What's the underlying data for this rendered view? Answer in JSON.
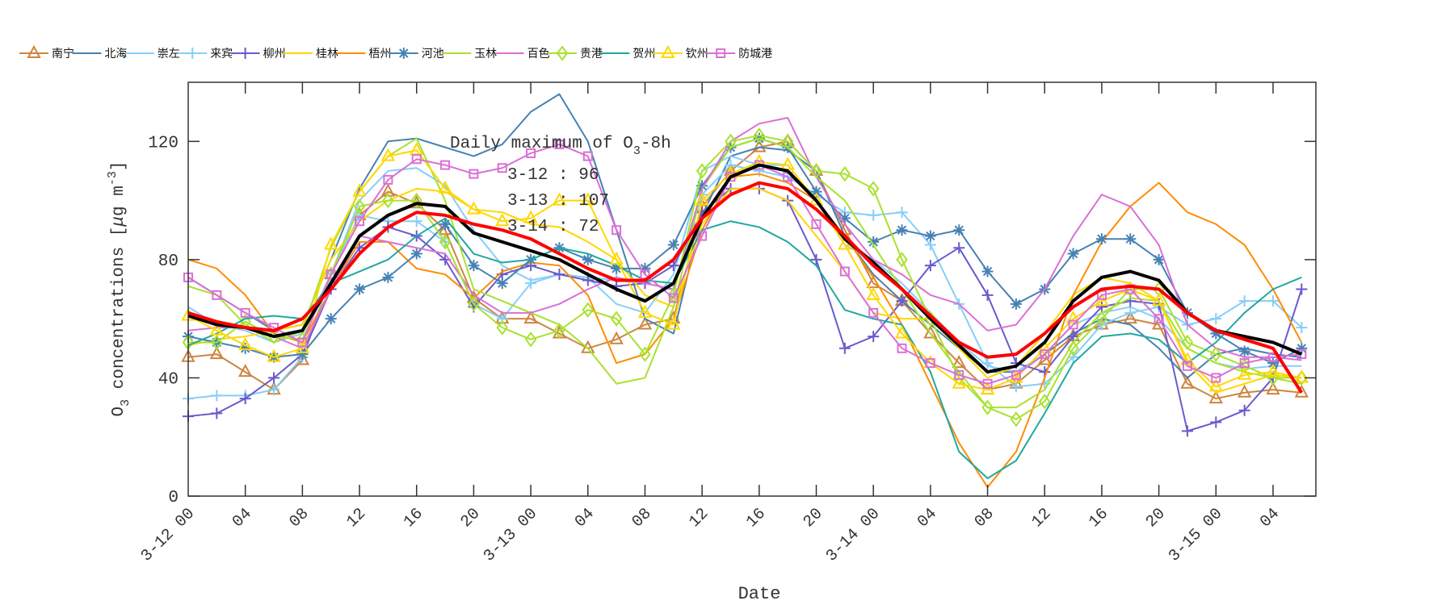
{
  "chart_data": {
    "type": "line",
    "title": "",
    "xlabel": "Date",
    "ylabel": {
      "main": "O",
      "sub": "3",
      "rest": " concentrations [",
      "mu": "μ",
      "unit": "g m",
      "sup": "-3",
      "close": "]"
    },
    "x_unit": "hours since 3-12 00",
    "xlim": [
      0,
      79
    ],
    "ylim": [
      0,
      140
    ],
    "y_ticks": [
      0,
      40,
      80,
      120
    ],
    "x_tick_labels": [
      "3-12 00",
      "04",
      "08",
      "12",
      "16",
      "20",
      "3-13 00",
      "04",
      "08",
      "12",
      "16",
      "20",
      "3-14 00",
      "04",
      "08",
      "12",
      "16",
      "20",
      "3-15 00",
      "04"
    ],
    "x": [
      0,
      2,
      4,
      6,
      8,
      10,
      12,
      14,
      16,
      18,
      20,
      22,
      24,
      26,
      28,
      30,
      32,
      34,
      36,
      38,
      40,
      42,
      44,
      46,
      48,
      50,
      52,
      54,
      56,
      58,
      60,
      62,
      64,
      66,
      68,
      70,
      72,
      74,
      76,
      78
    ],
    "grid": false,
    "legend_position": "top",
    "annotation": {
      "title": "Daily maximum of O",
      "title_sub": "3",
      "title_rest": "-8h",
      "lines": [
        "3-12 : 96",
        "3-13 : 107",
        "3-14 : 72"
      ]
    },
    "series": [
      {
        "name": "南宁",
        "color": "#CD853F",
        "marker": "triangle",
        "values": [
          47,
          48,
          42,
          36,
          46,
          75,
          95,
          103,
          99,
          90,
          67,
          60,
          60,
          55,
          50,
          53,
          58,
          60,
          98,
          110,
          118,
          120,
          110,
          90,
          72,
          66,
          55,
          45,
          36,
          38,
          46,
          54,
          58,
          60,
          58,
          38,
          33,
          35,
          36,
          35
        ]
      },
      {
        "name": "北海",
        "color": "#4682B4",
        "marker": "none",
        "values": [
          74,
          68,
          62,
          56,
          58,
          80,
          104,
          120,
          121,
          118,
          115,
          119,
          130,
          136,
          120,
          90,
          60,
          55,
          95,
          115,
          118,
          117,
          110,
          88,
          75,
          66,
          58,
          50,
          42,
          42,
          48,
          55,
          60,
          58,
          50,
          40,
          48,
          50,
          48,
          47
        ]
      },
      {
        "name": "崇左",
        "color": "#87CEFA",
        "marker": "none",
        "values": [
          64,
          58,
          56,
          52,
          55,
          75,
          100,
          110,
          111,
          105,
          90,
          78,
          73,
          75,
          74,
          65,
          62,
          75,
          110,
          115,
          112,
          112,
          100,
          85,
          80,
          72,
          62,
          52,
          44,
          42,
          48,
          58,
          62,
          64,
          60,
          50,
          45,
          43,
          44,
          44
        ]
      },
      {
        "name": "来宾",
        "color": "#87CEFA",
        "marker": "plus",
        "values": [
          33,
          34,
          34,
          36,
          47,
          75,
          95,
          93,
          93,
          86,
          65,
          60,
          72,
          75,
          74,
          73,
          72,
          70,
          102,
          112,
          110,
          108,
          102,
          96,
          95,
          96,
          85,
          65,
          45,
          37,
          38,
          47,
          58,
          62,
          64,
          58,
          60,
          66,
          66,
          57
        ]
      },
      {
        "name": "柳州",
        "color": "#6A5ACD",
        "marker": "plus",
        "values": [
          27,
          28,
          33,
          40,
          48,
          70,
          84,
          91,
          88,
          80,
          64,
          75,
          78,
          75,
          73,
          71,
          72,
          78,
          96,
          104,
          104,
          100,
          80,
          50,
          54,
          66,
          78,
          84,
          68,
          45,
          42,
          54,
          64,
          66,
          65,
          22,
          25,
          29,
          40,
          70
        ]
      },
      {
        "name": "桂林",
        "color": "#FFD700",
        "marker": "none",
        "values": [
          51,
          53,
          54,
          56,
          58,
          80,
          93,
          100,
          104,
          103,
          97,
          96,
          92,
          91,
          86,
          80,
          68,
          64,
          92,
          104,
          104,
          100,
          88,
          76,
          62,
          60,
          60,
          50,
          40,
          44,
          55,
          68,
          74,
          72,
          66,
          45,
          35,
          38,
          41,
          40
        ]
      },
      {
        "name": "梧州",
        "color": "#FF8C00",
        "marker": "none",
        "values": [
          80,
          77,
          68,
          55,
          52,
          70,
          86,
          86,
          77,
          75,
          67,
          76,
          79,
          78,
          68,
          45,
          48,
          60,
          90,
          108,
          109,
          106,
          100,
          88,
          74,
          58,
          38,
          18,
          3,
          15,
          40,
          68,
          86,
          98,
          106,
          96,
          92,
          85,
          70,
          52
        ]
      },
      {
        "name": "河池",
        "color": "#4682B4",
        "marker": "asterisk",
        "values": [
          54,
          52,
          50,
          47,
          48,
          60,
          70,
          74,
          82,
          92,
          78,
          72,
          80,
          84,
          80,
          77,
          77,
          85,
          105,
          118,
          121,
          118,
          103,
          94,
          86,
          90,
          88,
          90,
          76,
          65,
          70,
          82,
          87,
          87,
          80,
          62,
          55,
          49,
          45,
          50
        ]
      },
      {
        "name": "玉林",
        "color": "#A8E22E",
        "marker": "none",
        "values": [
          71,
          68,
          58,
          52,
          56,
          84,
          103,
          115,
          121,
          100,
          70,
          66,
          62,
          58,
          50,
          38,
          40,
          64,
          104,
          118,
          121,
          118,
          108,
          100,
          85,
          70,
          55,
          42,
          30,
          30,
          36,
          52,
          62,
          67,
          66,
          50,
          45,
          42,
          40,
          38
        ]
      },
      {
        "name": "百色",
        "color": "#DA70D6",
        "marker": "none",
        "values": [
          56,
          57,
          57,
          54,
          50,
          70,
          88,
          86,
          84,
          82,
          68,
          62,
          62,
          65,
          70,
          74,
          72,
          70,
          104,
          120,
          126,
          128,
          108,
          92,
          80,
          75,
          68,
          65,
          56,
          58,
          70,
          88,
          102,
          98,
          85,
          58,
          50,
          47,
          47,
          46
        ]
      },
      {
        "name": "贵港",
        "color": "#A8E22E",
        "marker": "diamond",
        "values": [
          52,
          52,
          59,
          54,
          53,
          75,
          98,
          100,
          100,
          86,
          65,
          57,
          53,
          56,
          63,
          60,
          48,
          68,
          110,
          120,
          122,
          120,
          110,
          109,
          104,
          80,
          60,
          40,
          30,
          26,
          32,
          50,
          60,
          70,
          70,
          52,
          48,
          44,
          40,
          40
        ]
      },
      {
        "name": "贺州",
        "color": "#20A8A0",
        "marker": "none",
        "values": [
          51,
          55,
          60,
          61,
          60,
          72,
          76,
          80,
          88,
          94,
          82,
          79,
          80,
          84,
          82,
          78,
          73,
          72,
          90,
          93,
          91,
          86,
          78,
          63,
          60,
          58,
          42,
          15,
          6,
          12,
          28,
          45,
          54,
          55,
          53,
          45,
          52,
          62,
          70,
          74
        ]
      },
      {
        "name": "钦州",
        "color": "#FFD700",
        "marker": "triangle",
        "values": [
          61,
          56,
          51,
          47,
          50,
          85,
          103,
          115,
          117,
          104,
          97,
          93,
          94,
          100,
          100,
          80,
          62,
          58,
          100,
          109,
          113,
          112,
          100,
          85,
          68,
          55,
          45,
          38,
          36,
          40,
          50,
          60,
          66,
          70,
          66,
          46,
          37,
          41,
          42,
          40
        ]
      },
      {
        "name": "防城港",
        "color": "#DA70D6",
        "marker": "square",
        "values": [
          74,
          68,
          62,
          57,
          52,
          75,
          93,
          107,
          114,
          112,
          109,
          111,
          116,
          119,
          115,
          90,
          75,
          67,
          88,
          108,
          112,
          108,
          92,
          76,
          62,
          50,
          45,
          41,
          38,
          41,
          48,
          58,
          68,
          70,
          60,
          44,
          40,
          45,
          47,
          48
        ]
      },
      {
        "color": "#000000",
        "marker": "none",
        "width": 4,
        "values": [
          61,
          58,
          57,
          54,
          56,
          72,
          88,
          95,
          99,
          98,
          89,
          86,
          83,
          80,
          75,
          70,
          66,
          72,
          94,
          108,
          112,
          110,
          100,
          87,
          79,
          70,
          60,
          51,
          42,
          44,
          52,
          66,
          74,
          76,
          73,
          62,
          56,
          54,
          52,
          48
        ]
      },
      {
        "color": "#FF0000",
        "marker": "none",
        "width": 4,
        "values": [
          62,
          59,
          57,
          56,
          60,
          70,
          82,
          91,
          96,
          95,
          92,
          90,
          87,
          82,
          77,
          73,
          73,
          80,
          94,
          102,
          106,
          104,
          97,
          88,
          78,
          70,
          61,
          52,
          47,
          48,
          55,
          64,
          70,
          71,
          70,
          62,
          56,
          53,
          50,
          35
        ]
      }
    ]
  }
}
